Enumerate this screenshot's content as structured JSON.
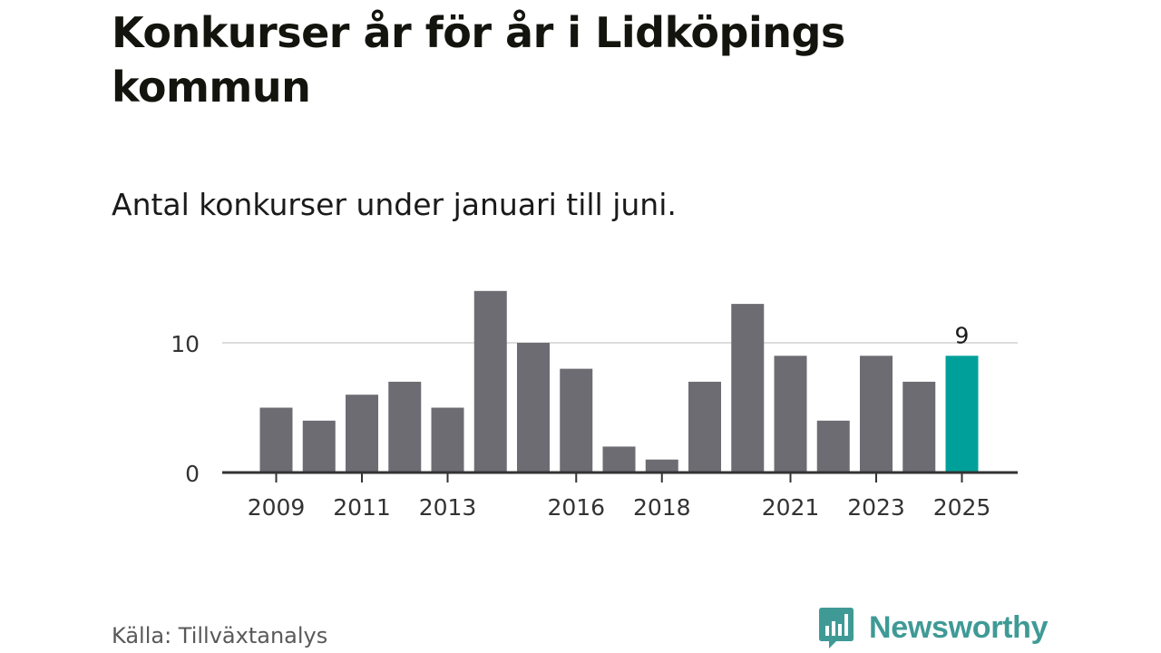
{
  "header": {
    "title": "Konkurser år för år i Lidköpings kommun",
    "subtitle": "Antal konkurser under januari till juni."
  },
  "footer": {
    "source": "Källa: Tillväxtanalys",
    "brand": "Newsworthy",
    "brand_icon": "bar-chart-speech-bubble-icon"
  },
  "colors": {
    "bar": "#6e6c73",
    "highlight": "#00a09a",
    "gridline": "#dddddd",
    "axis": "#333333",
    "tick_text": "#333333",
    "brand": "#3f9a96"
  },
  "chart_data": {
    "type": "bar",
    "categories": [
      "2009",
      "2010",
      "2011",
      "2012",
      "2013",
      "2014",
      "2015",
      "2016",
      "2017",
      "2018",
      "2019",
      "2020",
      "2021",
      "2022",
      "2023",
      "2024",
      "2025"
    ],
    "values": [
      5,
      4,
      6,
      7,
      5,
      14,
      10,
      8,
      2,
      1,
      7,
      13,
      9,
      4,
      9,
      7,
      9
    ],
    "x_tick_labels": [
      "2009",
      "2011",
      "2013",
      "2016",
      "2018",
      "2021",
      "2023",
      "2025"
    ],
    "y_ticks": [
      0,
      10
    ],
    "ylim": [
      0,
      14
    ],
    "highlight_category": "2025",
    "data_labels": [
      {
        "category": "2025",
        "text": "9"
      }
    ],
    "grid": "horizontal",
    "legend": "none"
  }
}
